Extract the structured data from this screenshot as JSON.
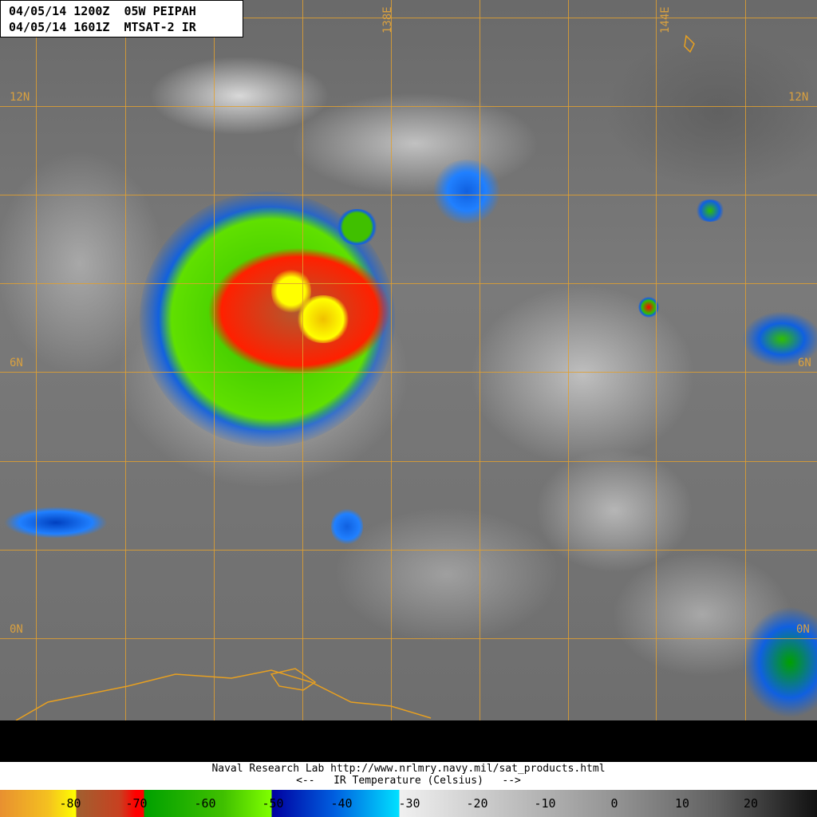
{
  "header": {
    "line1": "04/05/14 1200Z  05W PEIPAH",
    "line2": "04/05/14 1601Z  MTSAT-2 IR"
  },
  "grid_labels": {
    "lat_12n": "12N",
    "lat_6n": "6N",
    "lat_0n": "0N",
    "lon_138e": "138E",
    "lon_144e": "144E"
  },
  "footer": {
    "credit": "Naval Research Lab http://www.nrlmry.navy.mil/sat_products.html",
    "scale_title": "<--   IR Temperature (Celsius)   -->"
  },
  "colorbar": {
    "ticks": [
      "-80",
      "-70",
      "-60",
      "-50",
      "-40",
      "-30",
      "-20",
      "-10",
      "0",
      "10",
      "20"
    ],
    "colors": {
      "coldest": "#e89030",
      "yellow": "#ffff00",
      "red": "#ff0000",
      "green": "#00a000",
      "blue": "#0000a0",
      "cyan": "#00e0ff",
      "warm_grey": "#606060"
    }
  },
  "grid_color": "#e0a030"
}
